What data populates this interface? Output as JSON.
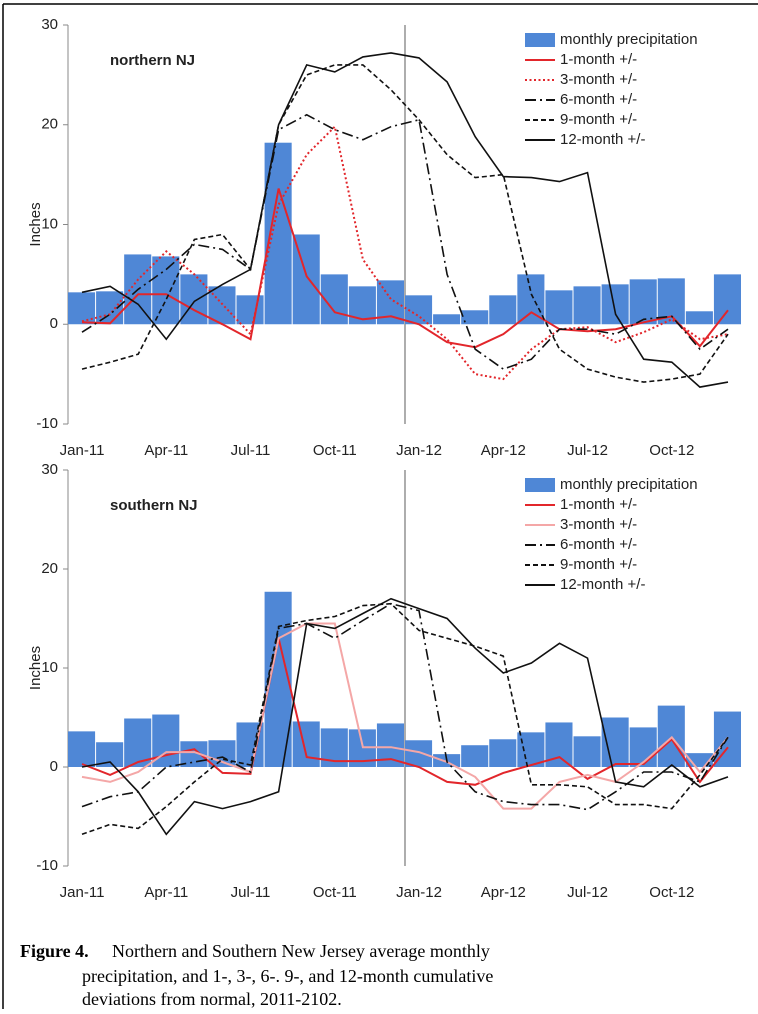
{
  "chart_data": [
    {
      "type": "combo",
      "label": "northern NJ",
      "ylabel": "Inches",
      "categories": [
        "Jan-11",
        null,
        null,
        "Apr-11",
        null,
        null,
        "Jul-11",
        null,
        null,
        "Oct-11",
        null,
        null,
        "Jan-12",
        null,
        null,
        "Apr-12",
        null,
        null,
        "Jul-12",
        null,
        null,
        "Oct-12",
        null,
        null
      ],
      "ylim": [
        -10,
        30
      ],
      "yticks": [
        -10,
        0,
        10,
        20,
        30
      ],
      "legend": "top-right",
      "series": [
        {
          "name": "monthly precipitation",
          "type": "bar",
          "color": "#4f87d6",
          "values": [
            3.2,
            3.3,
            7.0,
            6.8,
            5.0,
            3.8,
            2.9,
            18.2,
            9.0,
            5.0,
            3.8,
            4.4,
            2.9,
            1.0,
            1.4,
            2.9,
            5.0,
            3.4,
            3.8,
            4.0,
            4.5,
            4.6,
            1.3,
            5.0
          ]
        },
        {
          "name": "1-month +/-",
          "type": "line",
          "style": "solid",
          "color": "#e2262b",
          "values": [
            0.2,
            0.1,
            3.0,
            3.0,
            1.4,
            0.0,
            -1.5,
            13.6,
            4.8,
            1.2,
            0.5,
            0.8,
            0.0,
            -1.8,
            -2.3,
            -1.0,
            1.2,
            -0.5,
            -0.7,
            -0.5,
            0.2,
            0.8,
            -2.2,
            1.4
          ]
        },
        {
          "name": "3-month +/-",
          "type": "line",
          "style": "dotted",
          "color": "#e2262b",
          "values": [
            0.3,
            1.0,
            4.5,
            7.3,
            5.0,
            2.0,
            -1.0,
            12.0,
            17.0,
            19.8,
            6.5,
            2.5,
            0.8,
            -1.5,
            -5.0,
            -5.5,
            -2.5,
            -0.5,
            -0.3,
            -1.8,
            -0.8,
            0.5,
            -1.5,
            -1.0
          ]
        },
        {
          "name": "6-month +/-",
          "type": "line",
          "style": "dashdot",
          "color": "#111111",
          "values": [
            -0.8,
            1.0,
            3.5,
            5.5,
            8.0,
            7.5,
            5.5,
            19.5,
            21.0,
            19.5,
            18.5,
            19.8,
            20.5,
            5.0,
            -2.5,
            -4.5,
            -3.5,
            -0.5,
            -0.5,
            -1.0,
            0.5,
            0.8,
            -2.5,
            -0.5
          ]
        },
        {
          "name": "9-month +/-",
          "type": "line",
          "style": "dashed",
          "color": "#111111",
          "values": [
            -4.5,
            -3.8,
            -3.0,
            2.5,
            8.5,
            9.0,
            5.5,
            20.0,
            25.0,
            26.0,
            26.0,
            23.5,
            20.5,
            17.0,
            14.7,
            15.0,
            3.0,
            -2.5,
            -4.5,
            -5.3,
            -5.8,
            -5.5,
            -5.0,
            -1.0
          ]
        },
        {
          "name": "12-month +/-",
          "type": "line",
          "style": "solid",
          "color": "#111111",
          "values": [
            3.2,
            3.8,
            2.0,
            -1.5,
            2.3,
            4.0,
            5.5,
            20.0,
            26.0,
            25.3,
            26.8,
            27.2,
            26.7,
            24.3,
            18.8,
            14.8,
            14.7,
            14.3,
            15.2,
            1.0,
            -3.5,
            -3.8,
            -6.3,
            -5.8
          ]
        }
      ]
    },
    {
      "type": "combo",
      "label": "southern NJ",
      "ylabel": "Inches",
      "categories": [
        "Jan-11",
        null,
        null,
        "Apr-11",
        null,
        null,
        "Jul-11",
        null,
        null,
        "Oct-11",
        null,
        null,
        "Jan-12",
        null,
        null,
        "Apr-12",
        null,
        null,
        "Jul-12",
        null,
        null,
        "Oct-12",
        null,
        null
      ],
      "ylim": [
        -10,
        30
      ],
      "yticks": [
        -10,
        0,
        10,
        20,
        30
      ],
      "legend": "top-right",
      "series": [
        {
          "name": "monthly precipitation",
          "type": "bar",
          "color": "#4f87d6",
          "values": [
            3.6,
            2.5,
            4.9,
            5.3,
            2.6,
            2.7,
            4.5,
            17.7,
            4.6,
            3.9,
            3.8,
            4.4,
            2.7,
            1.3,
            2.2,
            2.8,
            3.5,
            4.5,
            3.1,
            5.0,
            4.0,
            6.2,
            1.4,
            5.6
          ]
        },
        {
          "name": "1-month +/-",
          "type": "line",
          "style": "solid",
          "color": "#e2262b",
          "values": [
            0.3,
            -0.8,
            0.5,
            1.2,
            1.8,
            -0.6,
            -0.7,
            13.0,
            1.0,
            0.6,
            0.6,
            0.8,
            0.0,
            -1.5,
            -1.8,
            -0.6,
            0.2,
            1.0,
            -1.2,
            0.3,
            0.3,
            2.8,
            -1.5,
            2.0
          ]
        },
        {
          "name": "3-month +/-",
          "type": "line",
          "style": "solid",
          "color": "#f4a7a7",
          "values": [
            -1.0,
            -1.5,
            -0.5,
            1.5,
            1.5,
            0.5,
            -0.5,
            13.0,
            14.5,
            14.5,
            2.0,
            2.0,
            1.5,
            0.5,
            -1.0,
            -4.2,
            -4.2,
            -1.5,
            -0.8,
            -1.5,
            0.5,
            3.0,
            -0.5,
            3.0
          ]
        },
        {
          "name": "6-month +/-",
          "type": "line",
          "style": "dashdot",
          "color": "#111111",
          "values": [
            -4.0,
            -3.0,
            -2.5,
            0.0,
            0.5,
            1.0,
            -0.5,
            14.0,
            14.5,
            13.0,
            14.8,
            16.5,
            15.8,
            0.5,
            -2.5,
            -3.5,
            -3.8,
            -3.8,
            -4.3,
            -2.5,
            -0.5,
            -0.5,
            -1.5,
            3.0
          ]
        },
        {
          "name": "9-month +/-",
          "type": "line",
          "style": "dashed",
          "color": "#111111",
          "values": [
            -6.8,
            -5.8,
            -6.2,
            -4.0,
            -1.5,
            0.8,
            0.2,
            14.2,
            14.8,
            15.2,
            16.3,
            16.5,
            13.8,
            13.0,
            12.2,
            11.2,
            -1.8,
            -1.8,
            -2.0,
            -3.8,
            -3.8,
            -4.2,
            -0.8,
            3.0
          ]
        },
        {
          "name": "12-month +/-",
          "type": "line",
          "style": "solid",
          "color": "#111111",
          "values": [
            0.0,
            0.5,
            -2.5,
            -6.8,
            -3.5,
            -4.2,
            -3.5,
            -2.5,
            14.5,
            14.0,
            15.5,
            17.0,
            16.0,
            15.0,
            12.0,
            9.5,
            10.5,
            12.5,
            11.0,
            -1.5,
            -2.0,
            0.2,
            -2.0,
            -1.0
          ]
        }
      ]
    }
  ],
  "caption": {
    "label": "Figure 4.",
    "lines": [
      "Northern and Southern New Jersey average monthly",
      "precipitation, and 1-, 3-, 6-. 9-, and 12-month cumulative",
      "deviations from normal, 2011-2102."
    ]
  }
}
